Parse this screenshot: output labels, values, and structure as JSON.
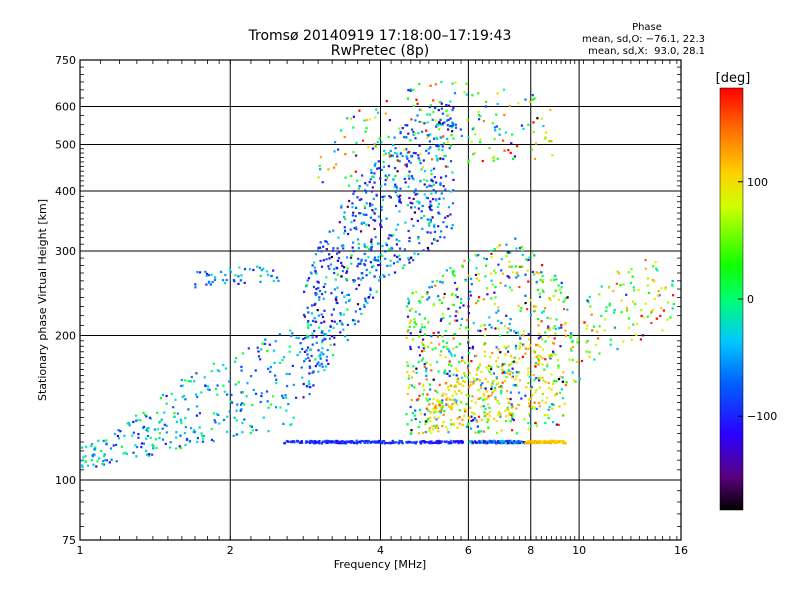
{
  "chart_data": {
    "type": "scatter",
    "title": "Tromsø 20140919 17:18:00–17:19:43",
    "subtitle": "RwPretec (8p)",
    "xlabel": "Frequency [MHz]",
    "ylabel": "Stationary phase Virtual Height [km]",
    "x_scale": "log",
    "y_scale": "log",
    "xlim": [
      1,
      16
    ],
    "ylim": [
      75,
      750
    ],
    "grid": true,
    "x_ticks": [
      1,
      2,
      4,
      6,
      8,
      10,
      16
    ],
    "x_tick_labels": [
      "1",
      "2",
      "4",
      "6",
      "8",
      "10",
      "16"
    ],
    "y_ticks": [
      75,
      100,
      200,
      300,
      400,
      500,
      600,
      750
    ],
    "y_tick_labels": [
      "75",
      "100",
      "200",
      "300",
      "400",
      "500",
      "600",
      "750"
    ],
    "phase_stats": {
      "heading": "Phase",
      "line_o": "mean, sd,O: −76.1, 22.3",
      "line_x": "mean, sd,X:  93.0, 28.1",
      "mean_o": -76.1,
      "sd_o": 22.3,
      "mean_x": 93.0,
      "sd_x": 28.1
    },
    "colorbar": {
      "label": "[deg]",
      "range": [
        -180,
        180
      ],
      "ticks": [
        -100,
        0,
        100
      ],
      "tick_labels": [
        "−100",
        "0",
        "100"
      ]
    },
    "series": [
      {
        "type": "band",
        "freq": [
          1.0,
          1.2,
          1.45,
          1.7,
          2.0,
          2.3,
          2.6,
          2.9
        ],
        "h_low": [
          104,
          108,
          113,
          118,
          122,
          125,
          127,
          128
        ],
        "h_high": [
          117,
          128,
          150,
          170,
          180,
          195,
          205,
          215
        ],
        "phase_mean": -40,
        "phase_sd": 35,
        "density": 320
      },
      {
        "type": "band",
        "freq": [
          2.8,
          3.1,
          3.5,
          4.0,
          4.5,
          5.0,
          5.6
        ],
        "h_low": [
          140,
          170,
          200,
          250,
          280,
          300,
          330
        ],
        "h_high": [
          260,
          330,
          400,
          470,
          560,
          600,
          640
        ],
        "phase_mean": -70,
        "phase_sd": 45,
        "density": 700
      },
      {
        "type": "band",
        "freq": [
          1.7,
          1.85,
          2.0,
          2.2,
          2.5
        ],
        "h_low": [
          250,
          252,
          255,
          258,
          260
        ],
        "h_high": [
          272,
          275,
          278,
          278,
          280
        ],
        "phase_mean": -50,
        "phase_sd": 30,
        "density": 50
      },
      {
        "type": "band",
        "freq": [
          4.5,
          5.5,
          6.5,
          7.5,
          8.5,
          9.5
        ],
        "h_low": [
          125,
          125,
          125,
          125,
          130,
          130
        ],
        "h_high": [
          240,
          280,
          300,
          320,
          280,
          260
        ],
        "phase_mean": 20,
        "phase_sd": 90,
        "density": 700
      },
      {
        "type": "band",
        "freq": [
          5.0,
          6.0,
          7.0,
          8.0,
          9.0
        ],
        "h_low": [
          125,
          130,
          135,
          140,
          145
        ],
        "h_high": [
          145,
          170,
          190,
          200,
          210
        ],
        "phase_mean": 105,
        "phase_sd": 20,
        "density": 220
      },
      {
        "type": "band",
        "freq": [
          3.0,
          4.0,
          5.0,
          6.0,
          7.0,
          8.0,
          9.0
        ],
        "h_low": [
          400,
          420,
          440,
          450,
          460,
          460,
          460
        ],
        "h_high": [
          560,
          640,
          680,
          680,
          660,
          640,
          600
        ],
        "phase_mean": 30,
        "phase_sd": 100,
        "density": 200
      },
      {
        "type": "band",
        "freq": [
          9.5,
          11.0,
          12.5,
          14.0,
          15.5
        ],
        "h_low": [
          150,
          180,
          185,
          200,
          210
        ],
        "h_high": [
          200,
          260,
          280,
          300,
          260
        ],
        "phase_mean": 60,
        "phase_sd": 70,
        "density": 130
      },
      {
        "type": "trace",
        "freq_range": [
          2.55,
          5.9
        ],
        "height": 120,
        "phase_mean": -95,
        "phase_sd": 15,
        "density": 260
      },
      {
        "type": "trace",
        "freq_range": [
          6.0,
          7.8
        ],
        "height": 120,
        "phase_mean": -85,
        "phase_sd": 40,
        "density": 140
      },
      {
        "type": "trace",
        "freq_range": [
          7.8,
          9.4
        ],
        "height": 120,
        "phase_mean": 110,
        "phase_sd": 10,
        "density": 90
      }
    ]
  }
}
